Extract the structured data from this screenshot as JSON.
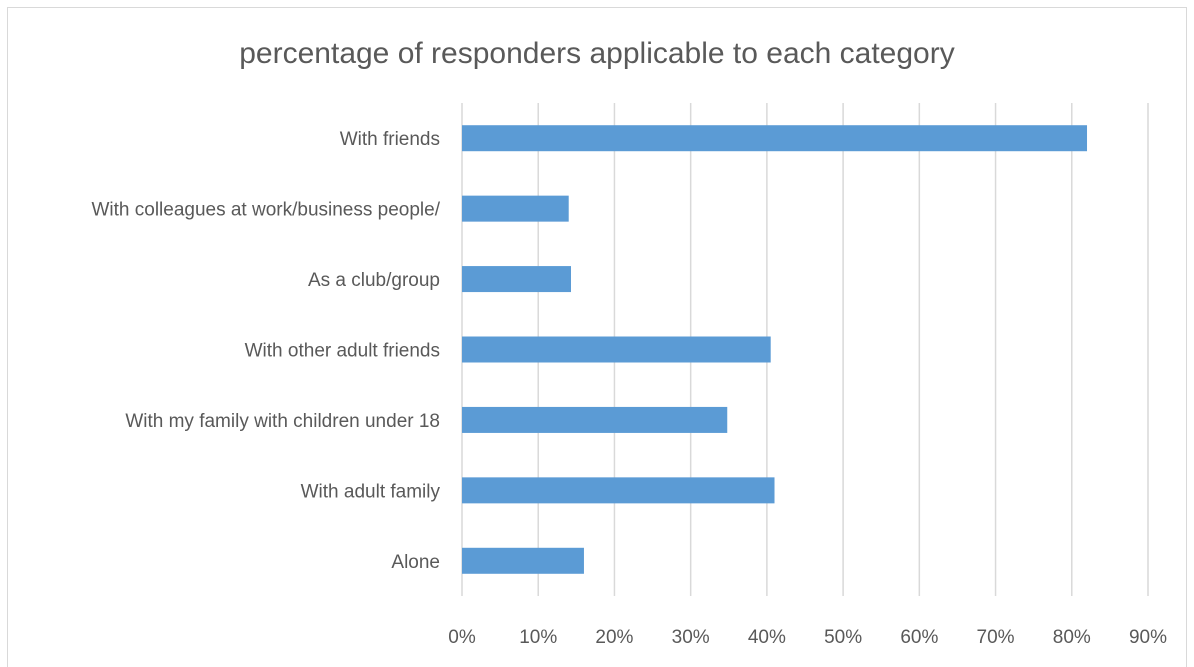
{
  "chart_data": {
    "type": "bar",
    "orientation": "horizontal",
    "title": "percentage of  responders applicable to each category",
    "xlabel": "",
    "ylabel": "",
    "categories": [
      "With friends",
      "With colleagues at work/business people/",
      "As a club/group",
      "With other adult friends",
      "With my family with children under 18",
      "With adult family",
      "Alone"
    ],
    "values": [
      82,
      14,
      14.3,
      40.5,
      34.8,
      41,
      16
    ],
    "xlim": [
      0,
      90
    ],
    "xticks": [
      0,
      10,
      20,
      30,
      40,
      50,
      60,
      70,
      80,
      90
    ],
    "tick_format": "%",
    "grid": true,
    "legend": "none",
    "colors": {
      "bar": "#5b9bd5",
      "grid": "#d9d9d9",
      "text": "#595959"
    }
  }
}
